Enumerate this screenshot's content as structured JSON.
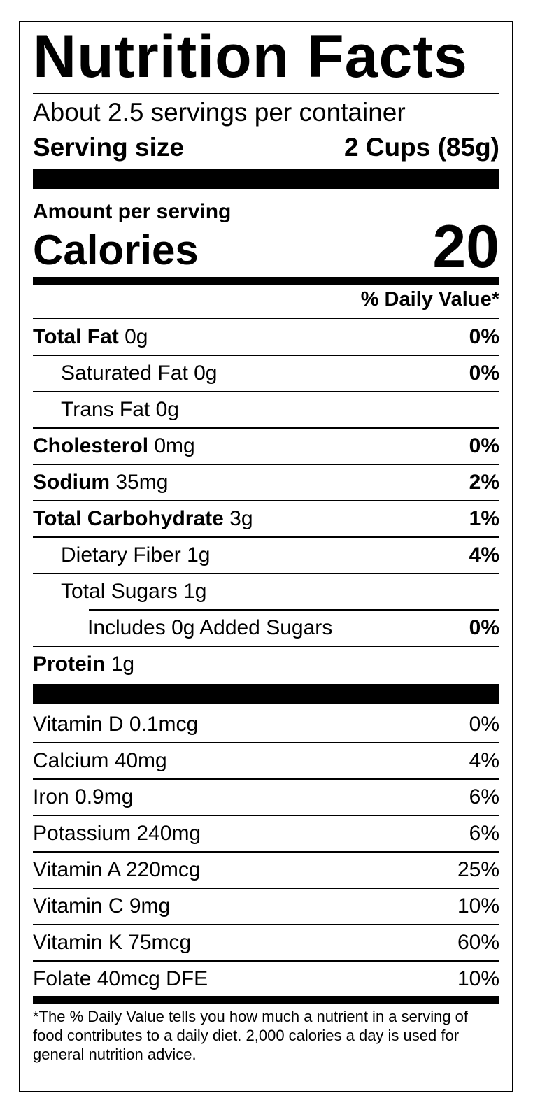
{
  "title": "Nutrition Facts",
  "servings_per_container": "About 2.5 servings per container",
  "serving_size": {
    "label": "Serving size",
    "value": "2 Cups (85g)"
  },
  "amount_per_serving": "Amount per serving",
  "calories": {
    "label": "Calories",
    "value": "20"
  },
  "daily_value_header": "% Daily Value*",
  "nutrients": [
    {
      "name": "Total Fat",
      "amount": "0g",
      "dv": "0%"
    },
    {
      "name": "Saturated Fat",
      "amount": "0g",
      "dv": "0%"
    },
    {
      "name": "Trans Fat",
      "amount": "0g",
      "dv": ""
    },
    {
      "name": "Cholesterol",
      "amount": "0mg",
      "dv": "0%"
    },
    {
      "name": "Sodium",
      "amount": "35mg",
      "dv": "2%"
    },
    {
      "name": "Total Carbohydrate",
      "amount": "3g",
      "dv": "1%"
    },
    {
      "name": "Dietary Fiber",
      "amount": "1g",
      "dv": "4%"
    },
    {
      "name": "Total Sugars",
      "amount": "1g",
      "dv": ""
    },
    {
      "name": "Includes 0g Added Sugars",
      "amount": "",
      "dv": "0%"
    },
    {
      "name": "Protein",
      "amount": "1g",
      "dv": ""
    }
  ],
  "vitamins": [
    {
      "name": "Vitamin D 0.1mcg",
      "dv": "0%"
    },
    {
      "name": "Calcium 40mg",
      "dv": "4%"
    },
    {
      "name": "Iron 0.9mg",
      "dv": "6%"
    },
    {
      "name": "Potassium 240mg",
      "dv": "6%"
    },
    {
      "name": "Vitamin A 220mcg",
      "dv": "25%"
    },
    {
      "name": "Vitamin C 9mg",
      "dv": "10%"
    },
    {
      "name": "Vitamin K 75mcg",
      "dv": "60%"
    },
    {
      "name": "Folate 40mcg DFE",
      "dv": "10%"
    }
  ],
  "footnote": "*The % Daily Value tells you how much a nutrient in a serving of food contributes to a daily diet. 2,000 calories a day is used for general nutrition advice."
}
